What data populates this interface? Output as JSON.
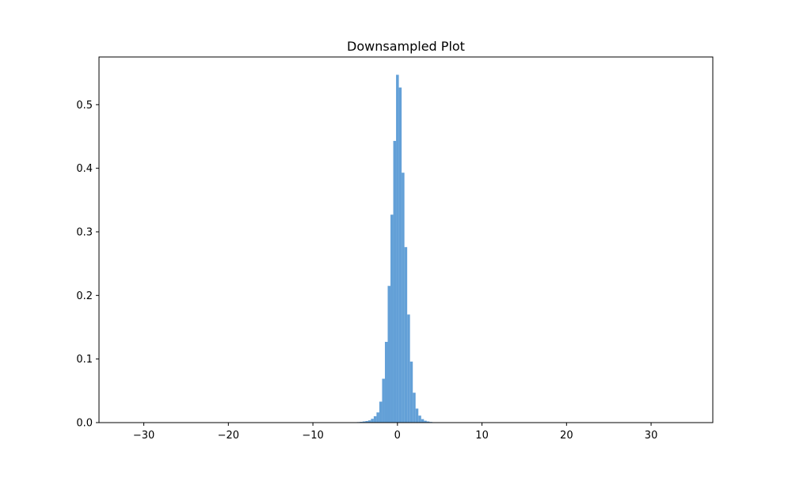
{
  "chart_data": {
    "type": "bar",
    "title": "Downsampled Plot",
    "xlabel": "",
    "ylabel": "",
    "xlim": [
      -35.3,
      37.3
    ],
    "ylim": [
      0,
      0.575
    ],
    "x_ticks": [
      -30,
      -20,
      -10,
      0,
      10,
      20,
      30
    ],
    "x_tick_labels": [
      "−30",
      "−20",
      "−10",
      "0",
      "10",
      "20",
      "30"
    ],
    "y_ticks": [
      0.0,
      0.1,
      0.2,
      0.3,
      0.4,
      0.5
    ],
    "y_tick_labels": [
      "0.0",
      "0.1",
      "0.2",
      "0.3",
      "0.4",
      "0.5"
    ],
    "bin_width": 0.33,
    "bins": [
      {
        "x": -4.95,
        "y": 0.0005
      },
      {
        "x": -4.62,
        "y": 0.0008
      },
      {
        "x": -4.29,
        "y": 0.0012
      },
      {
        "x": -3.96,
        "y": 0.0018
      },
      {
        "x": -3.63,
        "y": 0.0025
      },
      {
        "x": -3.3,
        "y": 0.0035
      },
      {
        "x": -2.97,
        "y": 0.006
      },
      {
        "x": -2.64,
        "y": 0.01
      },
      {
        "x": -2.31,
        "y": 0.016
      },
      {
        "x": -1.98,
        "y": 0.033
      },
      {
        "x": -1.65,
        "y": 0.069
      },
      {
        "x": -1.32,
        "y": 0.127
      },
      {
        "x": -0.99,
        "y": 0.215
      },
      {
        "x": -0.66,
        "y": 0.327
      },
      {
        "x": -0.33,
        "y": 0.443
      },
      {
        "x": 0.0,
        "y": 0.547
      },
      {
        "x": 0.33,
        "y": 0.527
      },
      {
        "x": 0.66,
        "y": 0.393
      },
      {
        "x": 0.99,
        "y": 0.276
      },
      {
        "x": 1.32,
        "y": 0.17
      },
      {
        "x": 1.65,
        "y": 0.096
      },
      {
        "x": 1.98,
        "y": 0.047
      },
      {
        "x": 2.31,
        "y": 0.022
      },
      {
        "x": 2.64,
        "y": 0.011
      },
      {
        "x": 2.97,
        "y": 0.0055
      },
      {
        "x": 3.3,
        "y": 0.003
      },
      {
        "x": 3.63,
        "y": 0.0018
      },
      {
        "x": 3.96,
        "y": 0.001
      },
      {
        "x": 4.29,
        "y": 0.0006
      }
    ],
    "color": "#5b9bd5",
    "grid": false,
    "legend": "none"
  }
}
